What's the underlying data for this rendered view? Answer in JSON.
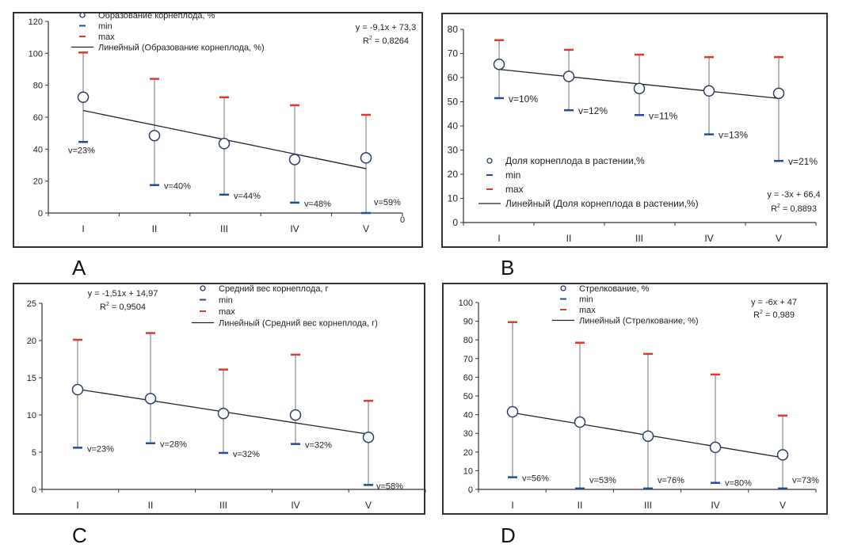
{
  "chart_data": [
    {
      "id": "A",
      "panel_label": "A",
      "type": "scatter",
      "title": "",
      "xlabel": "",
      "ylabel": "",
      "categories": [
        "I",
        "II",
        "III",
        "IV",
        "V"
      ],
      "ylim": [
        0,
        120
      ],
      "yticks": [
        0,
        20,
        40,
        60,
        80,
        100,
        120
      ],
      "grid": false,
      "series": [
        {
          "name": "Образование корнеплода, %",
          "kind": "mean",
          "values": [
            72.5,
            48.5,
            43.5,
            33.5,
            34.5
          ]
        },
        {
          "name": "min",
          "kind": "min",
          "values": [
            44.5,
            17.5,
            11.5,
            6.5,
            0
          ]
        },
        {
          "name": "max",
          "kind": "max",
          "values": [
            100.5,
            84,
            72.5,
            67.5,
            61.5
          ]
        },
        {
          "name": "Линейный (Образование корнеплода, %)",
          "kind": "trend",
          "slope": -9.1,
          "intercept": 73.3
        }
      ],
      "annotations": {
        "cv_labels": [
          "v=23%",
          "v=40%",
          "v=44%",
          "v=48%",
          "v=59%"
        ],
        "equation": "y = -9,1x + 73,3",
        "r2_prefix": "R",
        "r2_value": " = 0,8264",
        "extra_tick": "0"
      },
      "legend_position": "top"
    },
    {
      "id": "B",
      "panel_label": "B",
      "type": "scatter",
      "title": "",
      "xlabel": "",
      "ylabel": "",
      "categories": [
        "I",
        "II",
        "III",
        "IV",
        "V"
      ],
      "ylim": [
        0,
        80
      ],
      "yticks": [
        0,
        10,
        20,
        30,
        40,
        50,
        60,
        70,
        80
      ],
      "grid": false,
      "series": [
        {
          "name": "Доля корнеплода в растении,%",
          "kind": "mean",
          "values": [
            65.5,
            60.5,
            55.5,
            54.5,
            53.5
          ]
        },
        {
          "name": "min",
          "kind": "min",
          "values": [
            51.5,
            46.5,
            44.5,
            36.5,
            25.5
          ]
        },
        {
          "name": "max",
          "kind": "max",
          "values": [
            75.5,
            71.5,
            69.5,
            68.5,
            68.5
          ]
        },
        {
          "name": "Линейный (Доля корнеплода в растении,%)",
          "kind": "trend",
          "slope": -3,
          "intercept": 66.4
        }
      ],
      "annotations": {
        "cv_labels": [
          "v=10%",
          "v=12%",
          "v=11%",
          "v=13%",
          "v=21%"
        ],
        "equation": "y = -3x + 66,4",
        "r2_prefix": "R",
        "r2_value": " = 0,8893"
      },
      "legend_position": "bottom-left"
    },
    {
      "id": "C",
      "panel_label": "C",
      "type": "scatter",
      "title": "",
      "xlabel": "",
      "ylabel": "",
      "categories": [
        "I",
        "II",
        "III",
        "IV",
        "V"
      ],
      "ylim": [
        0,
        25
      ],
      "yticks": [
        0,
        5,
        10,
        15,
        20,
        25
      ],
      "grid": false,
      "series": [
        {
          "name": "Средний вес корнеплода, г",
          "kind": "mean",
          "values": [
            13.4,
            12.2,
            10.2,
            10.0,
            7.0
          ]
        },
        {
          "name": "min",
          "kind": "min",
          "values": [
            5.6,
            6.2,
            4.9,
            6.1,
            0.6
          ]
        },
        {
          "name": "max",
          "kind": "max",
          "values": [
            20.1,
            21.0,
            16.1,
            18.1,
            11.9
          ]
        },
        {
          "name": "Линейный (Средний вес корнеплода, г)",
          "kind": "trend",
          "slope": -1.51,
          "intercept": 14.97
        }
      ],
      "annotations": {
        "cv_labels": [
          "v=23%",
          "v=28%",
          "v=32%",
          "v=32%",
          "v=58%"
        ],
        "equation": "y = -1,51x + 14,97",
        "r2_prefix": "R",
        "r2_value": " = 0,9504"
      },
      "legend_position": "top-right"
    },
    {
      "id": "D",
      "panel_label": "D",
      "type": "scatter",
      "title": "",
      "xlabel": "",
      "ylabel": "",
      "categories": [
        "I",
        "II",
        "III",
        "IV",
        "V"
      ],
      "ylim": [
        0,
        100
      ],
      "yticks": [
        0,
        10,
        20,
        30,
        40,
        50,
        60,
        70,
        80,
        90,
        100
      ],
      "grid": false,
      "series": [
        {
          "name": "Стрелкование, %",
          "kind": "mean",
          "values": [
            41.5,
            36,
            28.5,
            22.5,
            18.5
          ]
        },
        {
          "name": "min",
          "kind": "min",
          "values": [
            6.5,
            0.5,
            0.5,
            3.5,
            0.5
          ]
        },
        {
          "name": "max",
          "kind": "max",
          "values": [
            89.5,
            78.5,
            72.5,
            61.5,
            39.5
          ]
        },
        {
          "name": "Линейный (Стрелкование, %)",
          "kind": "trend",
          "slope": -6,
          "intercept": 47
        }
      ],
      "annotations": {
        "cv_labels": [
          "v=56%",
          "v=53%",
          "v=76%",
          "v=80%",
          "v=73%"
        ],
        "equation": "y = -6x + 47",
        "r2_prefix": "R",
        "r2_value": " = 0,989"
      },
      "legend_position": "top"
    }
  ],
  "colors": {
    "marker": "#2b3f6b",
    "min": "#1f4e9a",
    "max": "#e0392b",
    "whisker": "#8a8a8a",
    "trend": "#222222",
    "axis": "#333333"
  }
}
